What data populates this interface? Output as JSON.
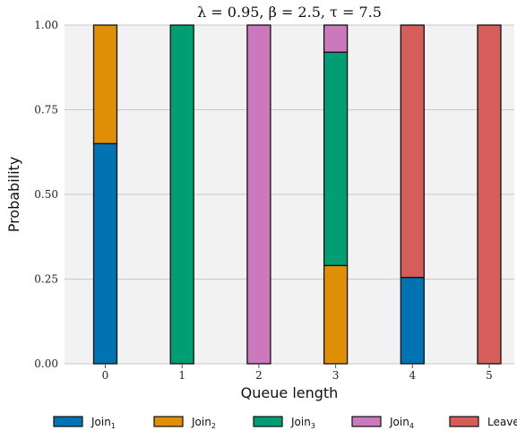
{
  "chart_data": {
    "type": "bar",
    "stacked": true,
    "title": "λ = 0.95, β = 2.5, τ = 7.5",
    "xlabel": "Queue length",
    "ylabel": "Probability",
    "ylim": [
      0,
      1
    ],
    "yticks": [
      "0.00",
      "0.25",
      "0.50",
      "0.75",
      "1.00"
    ],
    "categories": [
      "0",
      "1",
      "2",
      "3",
      "4",
      "5"
    ],
    "grid": true,
    "legend_position": "bottom",
    "series": [
      {
        "name": "Join",
        "sub": "1",
        "color": "#0173b2",
        "values": [
          0.65,
          0,
          0,
          0,
          0.255,
          0
        ]
      },
      {
        "name": "Join",
        "sub": "2",
        "color": "#de8f05",
        "values": [
          0.35,
          0,
          0,
          0.29,
          0,
          0
        ]
      },
      {
        "name": "Join",
        "sub": "3",
        "color": "#029e73",
        "values": [
          0,
          1.0,
          0,
          0.63,
          0,
          0
        ]
      },
      {
        "name": "Join",
        "sub": "4",
        "color": "#cc78bc",
        "values": [
          0,
          0,
          1.0,
          0.08,
          0,
          0
        ]
      },
      {
        "name": "Leave",
        "sub": "",
        "color": "#d55e5a",
        "values": [
          0,
          0,
          0,
          0,
          0.745,
          1.0
        ]
      }
    ]
  }
}
